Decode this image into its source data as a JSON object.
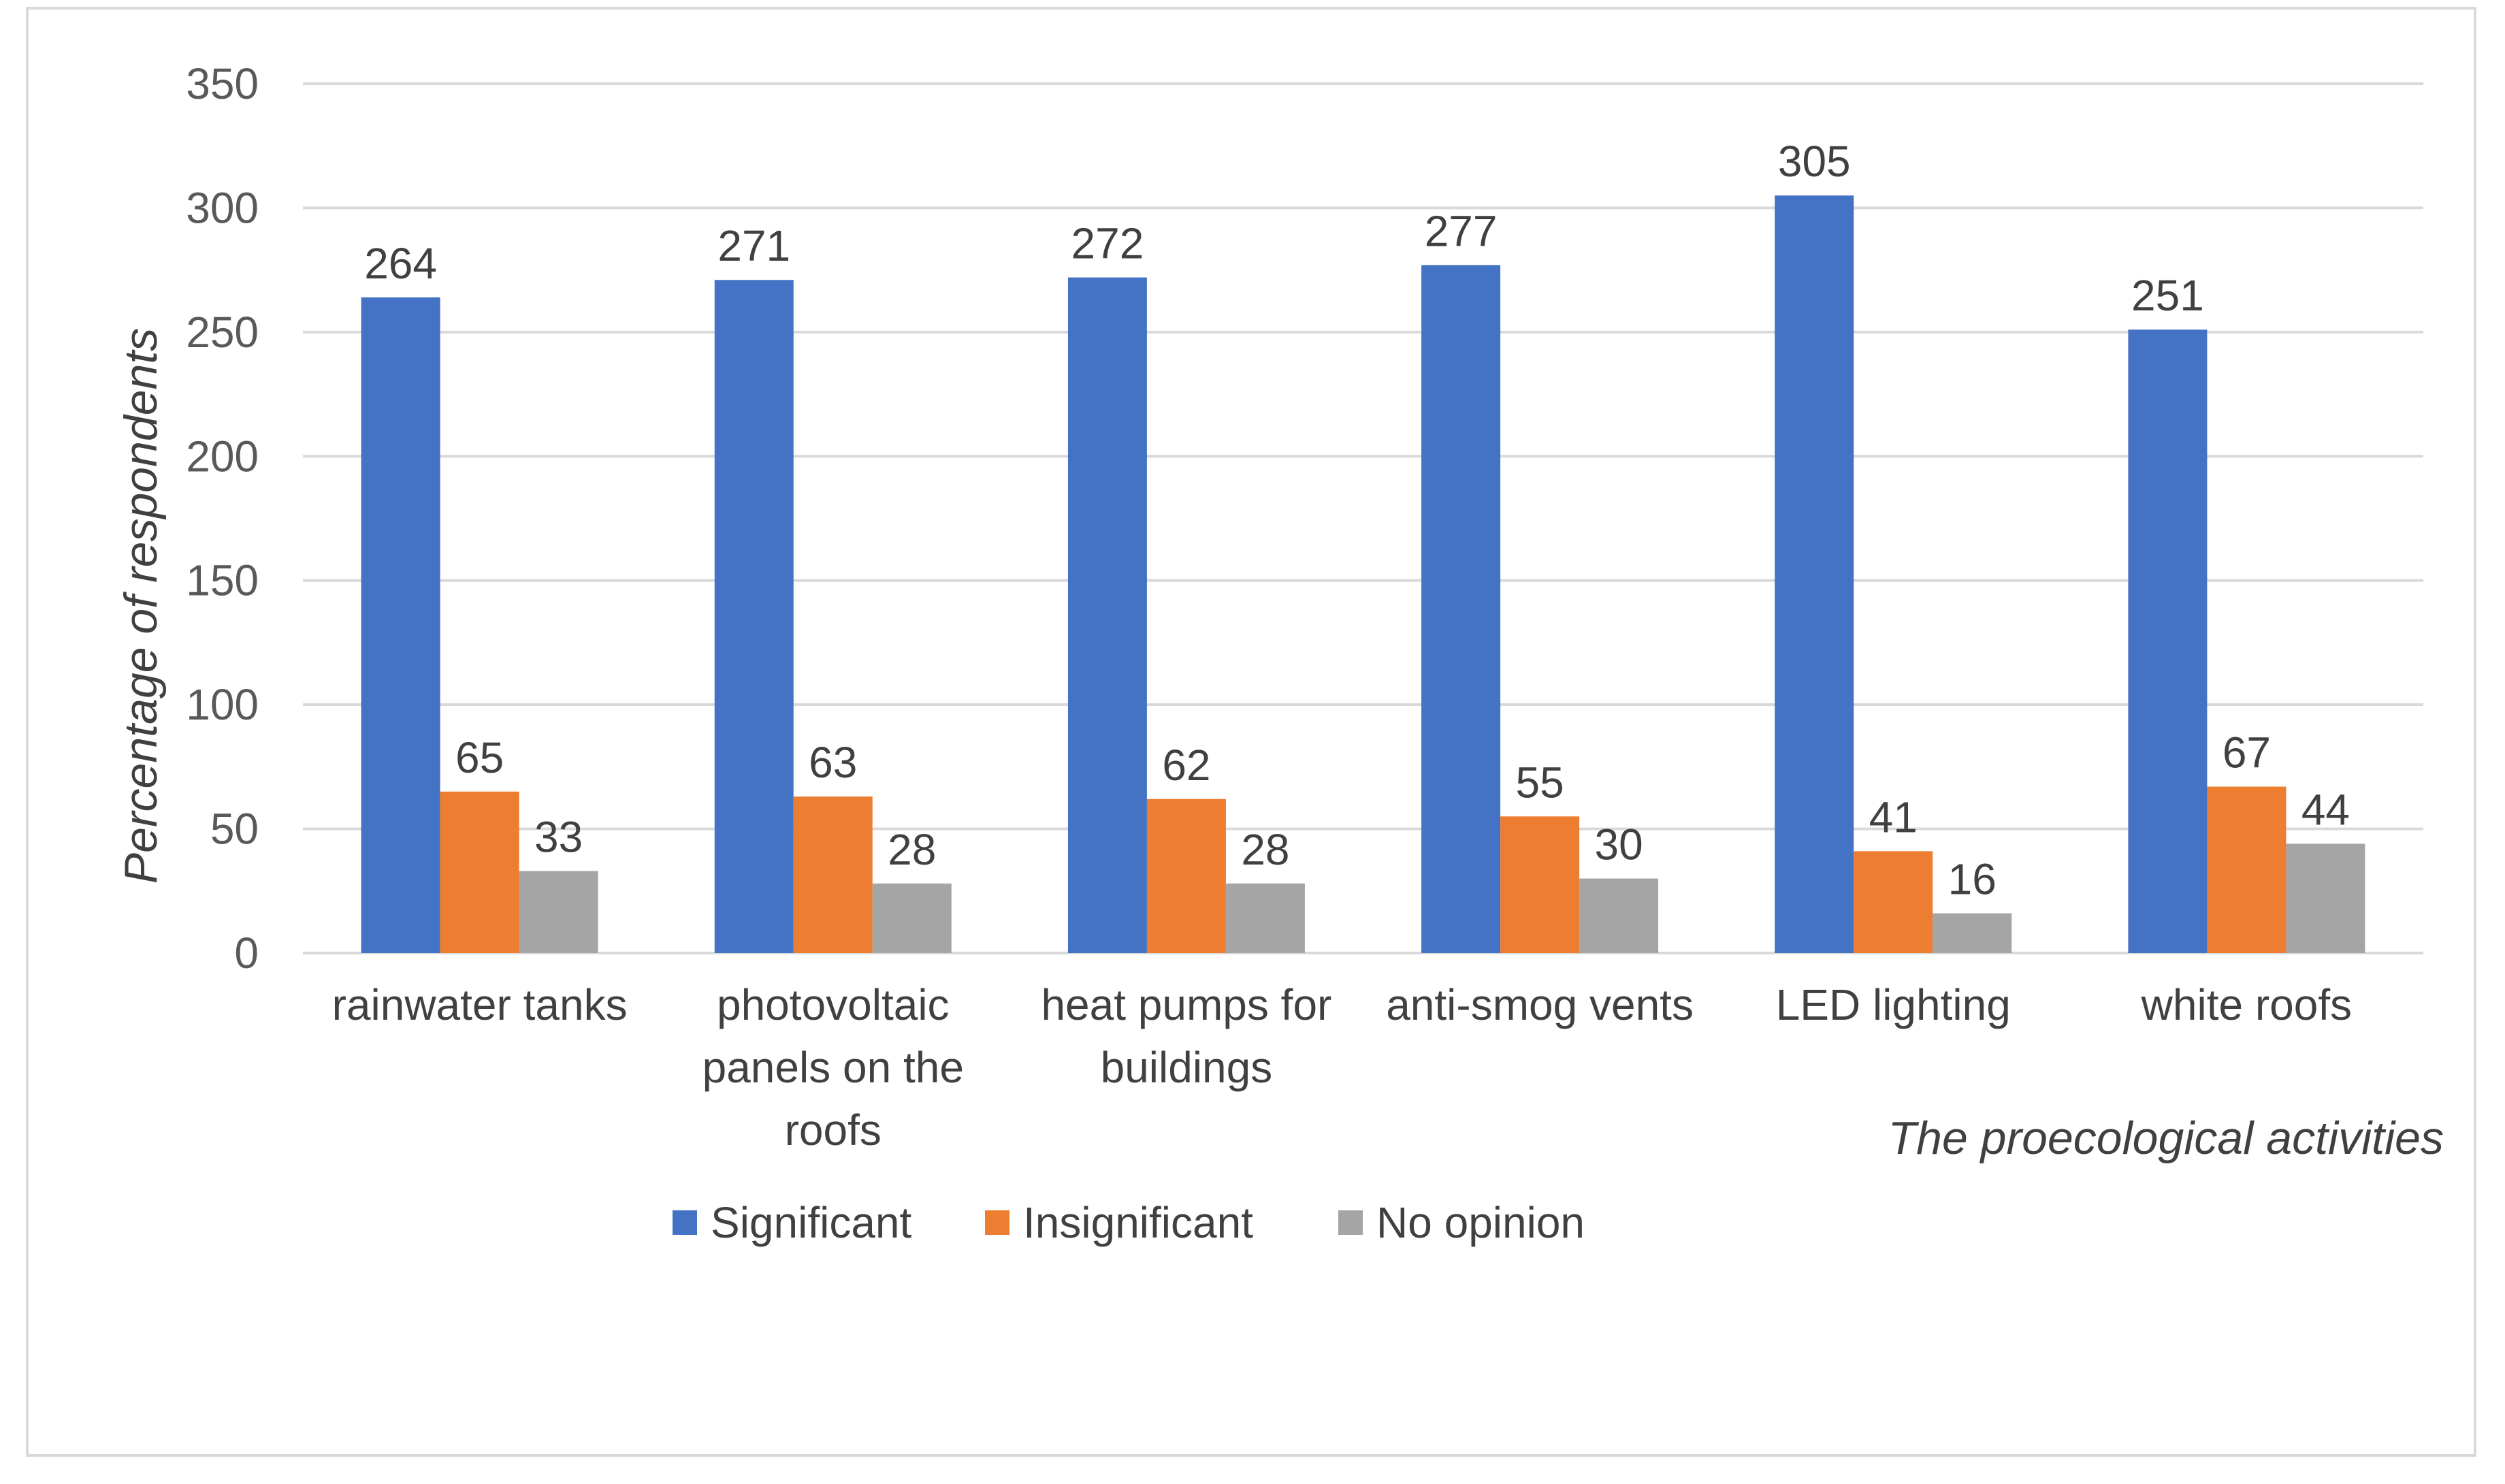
{
  "chart_data": {
    "type": "bar",
    "title": "",
    "xlabel": "The proecological activities",
    "ylabel": "Percentage of respondents",
    "ylim": [
      0,
      350
    ],
    "yticks": [
      0,
      50,
      100,
      150,
      200,
      250,
      300,
      350
    ],
    "grid": true,
    "legend_position": "bottom",
    "categories": [
      [
        "rainwater tanks"
      ],
      [
        "photovoltaic",
        "panels on the",
        "roofs"
      ],
      [
        "heat pumps for",
        "buildings"
      ],
      [
        "anti-smog vents"
      ],
      [
        "LED lighting"
      ],
      [
        "white roofs"
      ]
    ],
    "series": [
      {
        "name": "Significant",
        "color": "#4472C4",
        "values": [
          264,
          271,
          272,
          277,
          305,
          251
        ]
      },
      {
        "name": "Insignificant",
        "color": "#ED7D31",
        "values": [
          65,
          63,
          62,
          55,
          41,
          67
        ]
      },
      {
        "name": "No opinion",
        "color": "#A5A5A5",
        "values": [
          33,
          28,
          28,
          30,
          16,
          44
        ]
      }
    ]
  }
}
